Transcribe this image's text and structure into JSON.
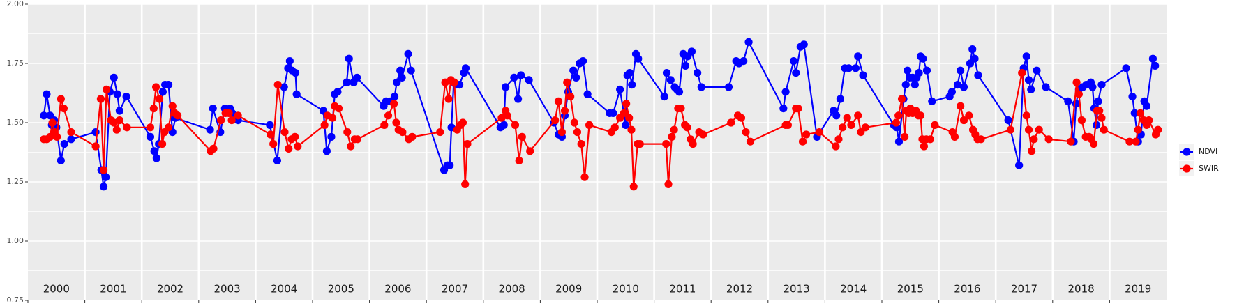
{
  "chart_data": {
    "type": "line",
    "categories": [
      "2000",
      "2001",
      "2002",
      "2003",
      "2004",
      "2005",
      "2006",
      "2007",
      "2008",
      "2009",
      "2010",
      "2011",
      "2012",
      "2013",
      "2014",
      "2015",
      "2016",
      "2017",
      "2018",
      "2019"
    ],
    "xlim": [
      2000,
      2020
    ],
    "ylim": [
      0.75,
      2.0
    ],
    "yticks": [
      0.75,
      {
        "value": 1.0,
        "label": "1.00"
      },
      1.25,
      {
        "value": 1.5,
        "label": "1.50"
      },
      1.75,
      {
        "value": 2.0,
        "label": "2.00"
      }
    ],
    "grid": true,
    "legend": "right",
    "series": [
      {
        "name": "NDVI",
        "color": "#0000ff",
        "x": [
          2000.28,
          2000.33,
          2000.39,
          2000.42,
          2000.46,
          2000.5,
          2000.58,
          2000.64,
          2000.76,
          2001.19,
          2001.29,
          2001.33,
          2001.37,
          2001.44,
          2001.51,
          2001.57,
          2001.61,
          2001.73,
          2002.15,
          2002.22,
          2002.26,
          2002.3,
          2002.37,
          2002.41,
          2002.47,
          2002.54,
          2002.59,
          2003.2,
          2003.25,
          2003.38,
          2003.46,
          2003.55,
          2003.59,
          2003.69,
          2004.25,
          2004.38,
          2004.5,
          2004.57,
          2004.6,
          2004.64,
          2004.7,
          2004.72,
          2005.19,
          2005.25,
          2005.33,
          2005.39,
          2005.44,
          2005.6,
          2005.64,
          2005.72,
          2005.78,
          2006.25,
          2006.29,
          2006.37,
          2006.44,
          2006.48,
          2006.54,
          2006.57,
          2006.68,
          2006.73,
          2007.31,
          2007.37,
          2007.41,
          2007.44,
          2007.48,
          2007.52,
          2007.58,
          2007.66,
          2007.69,
          2008.3,
          2008.36,
          2008.39,
          2008.54,
          2008.61,
          2008.66,
          2008.8,
          2009.24,
          2009.32,
          2009.38,
          2009.43,
          2009.49,
          2009.58,
          2009.63,
          2009.69,
          2009.75,
          2009.83,
          2010.22,
          2010.28,
          2010.4,
          2010.5,
          2010.53,
          2010.57,
          2010.61,
          2010.68,
          2010.72,
          2011.18,
          2011.22,
          2011.29,
          2011.36,
          2011.4,
          2011.44,
          2011.51,
          2011.55,
          2011.59,
          2011.66,
          2011.76,
          2011.83,
          2012.31,
          2012.44,
          2012.49,
          2012.57,
          2012.66,
          2013.27,
          2013.31,
          2013.45,
          2013.49,
          2013.57,
          2013.63,
          2013.86,
          2014.15,
          2014.2,
          2014.27,
          2014.35,
          2014.42,
          2014.54,
          2014.58,
          2014.67,
          2015.21,
          2015.26,
          2015.3,
          2015.38,
          2015.42,
          2015.45,
          2015.49,
          2015.54,
          2015.58,
          2015.61,
          2015.65,
          2015.68,
          2015.72,
          2015.79,
          2015.88,
          2016.19,
          2016.23,
          2016.33,
          2016.38,
          2016.44,
          2016.55,
          2016.59,
          2016.63,
          2016.69,
          2017.22,
          2017.41,
          2017.49,
          2017.54,
          2017.58,
          2017.62,
          2017.72,
          2017.88,
          2018.27,
          2018.37,
          2018.41,
          2018.46,
          2018.53,
          2018.59,
          2018.67,
          2018.7,
          2018.73,
          2018.77,
          2018.8,
          2018.86,
          2019.29,
          2019.4,
          2019.44,
          2019.5,
          2019.55,
          2019.61,
          2019.65,
          2019.76,
          2019.8
        ],
        "values": [
          1.53,
          1.62,
          1.53,
          1.49,
          1.51,
          1.48,
          1.34,
          1.41,
          1.43,
          1.46,
          1.3,
          1.23,
          1.27,
          1.63,
          1.69,
          1.62,
          1.55,
          1.61,
          1.44,
          1.38,
          1.35,
          1.41,
          1.63,
          1.66,
          1.66,
          1.46,
          1.52,
          1.47,
          1.56,
          1.46,
          1.56,
          1.56,
          1.54,
          1.51,
          1.49,
          1.34,
          1.65,
          1.73,
          1.76,
          1.72,
          1.71,
          1.62,
          1.55,
          1.38,
          1.44,
          1.62,
          1.63,
          1.67,
          1.77,
          1.67,
          1.69,
          1.57,
          1.59,
          1.59,
          1.61,
          1.67,
          1.72,
          1.69,
          1.79,
          1.72,
          1.3,
          1.32,
          1.32,
          1.48,
          1.67,
          1.66,
          1.66,
          1.71,
          1.73,
          1.48,
          1.49,
          1.65,
          1.69,
          1.6,
          1.7,
          1.68,
          1.5,
          1.45,
          1.44,
          1.53,
          1.63,
          1.72,
          1.69,
          1.75,
          1.76,
          1.62,
          1.54,
          1.54,
          1.64,
          1.49,
          1.7,
          1.71,
          1.66,
          1.79,
          1.77,
          1.61,
          1.71,
          1.68,
          1.65,
          1.64,
          1.63,
          1.79,
          1.74,
          1.78,
          1.8,
          1.71,
          1.65,
          1.65,
          1.76,
          1.75,
          1.76,
          1.84,
          1.56,
          1.63,
          1.76,
          1.71,
          1.82,
          1.83,
          1.44,
          1.55,
          1.53,
          1.6,
          1.73,
          1.73,
          1.73,
          1.78,
          1.7,
          1.49,
          1.48,
          1.42,
          1.6,
          1.66,
          1.72,
          1.69,
          1.69,
          1.66,
          1.69,
          1.71,
          1.78,
          1.77,
          1.72,
          1.59,
          1.61,
          1.63,
          1.66,
          1.72,
          1.65,
          1.75,
          1.81,
          1.77,
          1.7,
          1.51,
          1.32,
          1.73,
          1.78,
          1.68,
          1.64,
          1.72,
          1.65,
          1.59,
          1.42,
          1.58,
          1.64,
          1.65,
          1.66,
          1.67,
          1.65,
          1.56,
          1.49,
          1.59,
          1.66,
          1.73,
          1.61,
          1.54,
          1.42,
          1.45,
          1.59,
          1.57,
          1.77,
          1.74
        ]
      },
      {
        "name": "SWIR",
        "color": "#ff0000",
        "x": [
          2000.28,
          2000.33,
          2000.39,
          2000.43,
          2000.47,
          2000.51,
          2000.58,
          2000.63,
          2000.76,
          2001.19,
          2001.28,
          2001.33,
          2001.38,
          2001.46,
          2001.51,
          2001.56,
          2001.61,
          2001.74,
          2002.15,
          2002.21,
          2002.25,
          2002.31,
          2002.36,
          2002.4,
          2002.47,
          2002.54,
          2002.58,
          2002.63,
          2003.21,
          2003.26,
          2003.39,
          2003.47,
          2003.53,
          2003.58,
          2003.69,
          2004.26,
          2004.31,
          2004.39,
          2004.51,
          2004.58,
          2004.63,
          2004.69,
          2004.74,
          2005.21,
          2005.26,
          2005.35,
          2005.39,
          2005.46,
          2005.61,
          2005.67,
          2005.74,
          2005.79,
          2006.26,
          2006.33,
          2006.43,
          2006.47,
          2006.51,
          2006.58,
          2006.69,
          2006.75,
          2007.24,
          2007.33,
          2007.39,
          2007.43,
          2007.49,
          2007.54,
          2007.6,
          2007.64,
          2007.68,
          2007.72,
          2008.32,
          2008.39,
          2008.42,
          2008.56,
          2008.63,
          2008.68,
          2008.82,
          2009.26,
          2009.32,
          2009.38,
          2009.43,
          2009.47,
          2009.53,
          2009.6,
          2009.65,
          2009.72,
          2009.78,
          2009.86,
          2010.25,
          2010.31,
          2010.4,
          2010.47,
          2010.51,
          2010.56,
          2010.6,
          2010.64,
          2010.71,
          2010.75,
          2011.21,
          2011.25,
          2011.31,
          2011.35,
          2011.42,
          2011.47,
          2011.54,
          2011.58,
          2011.64,
          2011.68,
          2011.79,
          2011.86,
          2012.35,
          2012.47,
          2012.53,
          2012.61,
          2012.69,
          2013.31,
          2013.35,
          2013.49,
          2013.53,
          2013.61,
          2013.67,
          2013.9,
          2014.19,
          2014.24,
          2014.31,
          2014.39,
          2014.46,
          2014.58,
          2014.63,
          2014.71,
          2015.25,
          2015.29,
          2015.35,
          2015.4,
          2015.43,
          2015.47,
          2015.5,
          2015.54,
          2015.6,
          2015.64,
          2015.68,
          2015.71,
          2015.74,
          2015.78,
          2015.85,
          2015.93,
          2016.24,
          2016.28,
          2016.38,
          2016.44,
          2016.53,
          2016.6,
          2016.64,
          2016.68,
          2016.74,
          2017.26,
          2017.46,
          2017.54,
          2017.58,
          2017.63,
          2017.67,
          2017.76,
          2017.93,
          2018.32,
          2018.42,
          2018.46,
          2018.51,
          2018.58,
          2018.64,
          2018.68,
          2018.72,
          2018.78,
          2018.82,
          2018.86,
          2018.9,
          2019.35,
          2019.46,
          2019.5,
          2019.54,
          2019.6,
          2019.65,
          2019.69,
          2019.81,
          2019.85
        ],
        "values": [
          1.43,
          1.43,
          1.44,
          1.5,
          1.46,
          1.44,
          1.6,
          1.56,
          1.46,
          1.4,
          1.6,
          1.3,
          1.64,
          1.51,
          1.5,
          1.47,
          1.51,
          1.48,
          1.48,
          1.56,
          1.65,
          1.6,
          1.41,
          1.46,
          1.48,
          1.57,
          1.54,
          1.53,
          1.38,
          1.39,
          1.51,
          1.54,
          1.54,
          1.51,
          1.53,
          1.45,
          1.41,
          1.66,
          1.46,
          1.39,
          1.43,
          1.44,
          1.4,
          1.49,
          1.53,
          1.52,
          1.57,
          1.56,
          1.46,
          1.4,
          1.43,
          1.43,
          1.49,
          1.53,
          1.58,
          1.5,
          1.47,
          1.46,
          1.43,
          1.44,
          1.46,
          1.67,
          1.6,
          1.68,
          1.67,
          1.47,
          1.49,
          1.5,
          1.24,
          1.41,
          1.52,
          1.55,
          1.53,
          1.49,
          1.34,
          1.44,
          1.38,
          1.51,
          1.59,
          1.46,
          1.55,
          1.67,
          1.61,
          1.5,
          1.46,
          1.41,
          1.27,
          1.49,
          1.46,
          1.48,
          1.52,
          1.54,
          1.58,
          1.52,
          1.47,
          1.23,
          1.41,
          1.41,
          1.41,
          1.24,
          1.44,
          1.47,
          1.56,
          1.56,
          1.49,
          1.48,
          1.43,
          1.41,
          1.46,
          1.45,
          1.5,
          1.53,
          1.52,
          1.46,
          1.42,
          1.49,
          1.49,
          1.56,
          1.56,
          1.42,
          1.45,
          1.46,
          1.4,
          1.43,
          1.48,
          1.52,
          1.49,
          1.53,
          1.46,
          1.48,
          1.5,
          1.53,
          1.6,
          1.44,
          1.55,
          1.54,
          1.56,
          1.54,
          1.55,
          1.53,
          1.53,
          1.43,
          1.4,
          1.43,
          1.43,
          1.49,
          1.46,
          1.44,
          1.57,
          1.51,
          1.53,
          1.47,
          1.45,
          1.43,
          1.43,
          1.47,
          1.71,
          1.53,
          1.47,
          1.38,
          1.43,
          1.47,
          1.43,
          1.42,
          1.67,
          1.62,
          1.51,
          1.44,
          1.44,
          1.43,
          1.41,
          1.55,
          1.55,
          1.52,
          1.47,
          1.42,
          1.42,
          1.47,
          1.54,
          1.51,
          1.49,
          1.51,
          1.45,
          1.47
        ]
      }
    ]
  }
}
